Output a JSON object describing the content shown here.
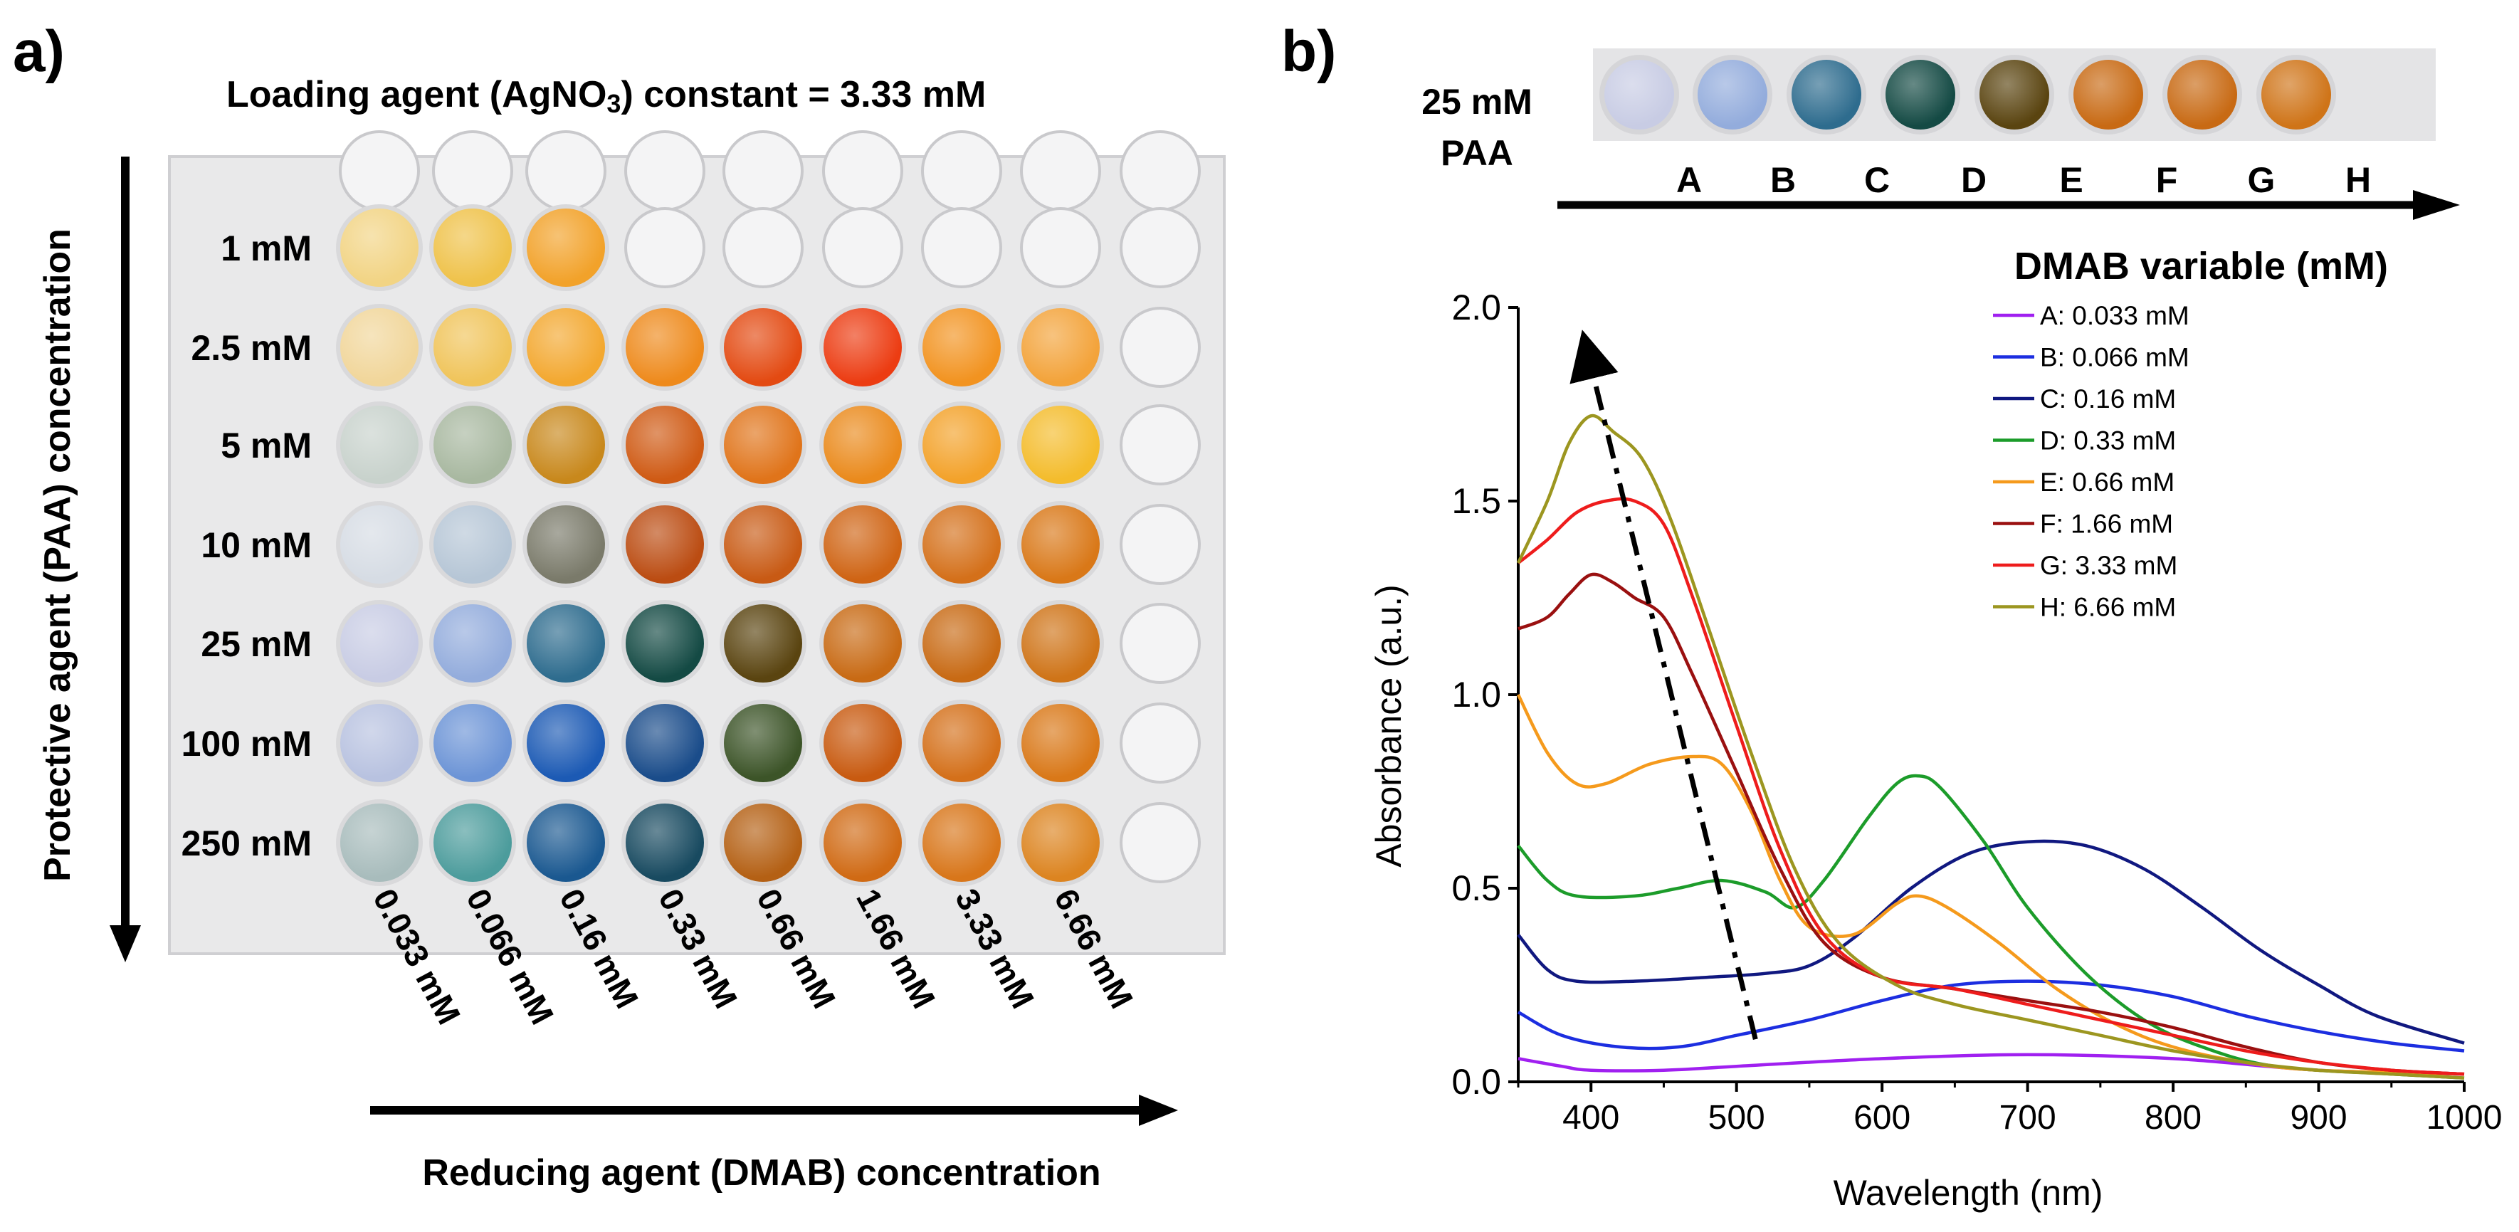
{
  "panel_a": {
    "label": "a)",
    "title": "Loading agent (AgNO3) constant = 3.33 mM",
    "title_main": "Loading agent (AgNO",
    "title_sub": "3",
    "title_tail": ") constant = 3.33 mM",
    "y_axis_label": "Protective agent (PAA) concentration",
    "x_axis_label": "Reducing agent (DMAB) concentration",
    "rows": [
      "1 mM",
      "2.5 mM",
      "5 mM",
      "10 mM",
      "25 mM",
      "100 mM",
      "250 mM"
    ],
    "columns": [
      "0.033 mM",
      "0.066 mM",
      "0.16 mM",
      "0.33 mM",
      "0.66 mM",
      "1.66 mM",
      "3.33 mM",
      "6.66 mM"
    ],
    "well_colors": [
      [
        "#f2d484",
        "#efc24a",
        "#f2a22a",
        null,
        null,
        null,
        null,
        null
      ],
      [
        "#f1d69a",
        "#f0c45a",
        "#f3a830",
        "#ee8a1c",
        "#e34a12",
        "#ec3c12",
        "#f29320",
        "#f3a33a"
      ],
      [
        "#c8d2cc",
        "#a8b8a0",
        "#c8881c",
        "#cf5a14",
        "#e0741a",
        "#ea8a1c",
        "#f3a22a",
        "#f4bc2c"
      ],
      [
        "#d6dce4",
        "#b6c6d6",
        "#7a7a6a",
        "#bb4c12",
        "#c85a14",
        "#cf6414",
        "#d4701a",
        "#d97818"
      ],
      [
        "#c8cce4",
        "#93acdc",
        "#2e6c8e",
        "#144a44",
        "#5a4410",
        "#c86a14",
        "#c86a14",
        "#cf7418"
      ],
      [
        "#b8c2e0",
        "#6c94d6",
        "#1c5ab4",
        "#1a4c8a",
        "#3c5428",
        "#c85a10",
        "#d4701a",
        "#d97818"
      ],
      [
        "#a8bcbc",
        "#4c9c9c",
        "#1a5890",
        "#184a60",
        "#b46014",
        "#d06a14",
        "#d8761a",
        "#dc8420"
      ]
    ]
  },
  "panel_b": {
    "label": "b)",
    "strip_label_line1": "25 mM",
    "strip_label_line2": "PAA",
    "strip_letters": [
      "A",
      "B",
      "C",
      "D",
      "E",
      "F",
      "G",
      "H"
    ],
    "strip_colors": [
      "#c8cce4",
      "#93acdc",
      "#2e6c8e",
      "#144a44",
      "#5a4410",
      "#c86a14",
      "#c86a14",
      "#cf7418"
    ],
    "legend_title": "DMAB variable (mM)"
  },
  "chart_data": {
    "type": "line",
    "xlabel": "Wavelength (nm)",
    "ylabel": "Absorbance (a.u.)",
    "xlim": [
      350,
      1000
    ],
    "ylim": [
      0,
      2.0
    ],
    "x_ticks": [
      400,
      500,
      600,
      700,
      800,
      900,
      1000
    ],
    "y_ticks": [
      "0.0",
      "0.5",
      "1.0",
      "1.5",
      "2.0"
    ],
    "legend_title": "DMAB variable (mM)",
    "series": [
      {
        "name": "A: 0.033 mM",
        "color": "#a020f0",
        "points": [
          [
            350,
            0.06
          ],
          [
            380,
            0.04
          ],
          [
            400,
            0.03
          ],
          [
            450,
            0.03
          ],
          [
            500,
            0.04
          ],
          [
            600,
            0.06
          ],
          [
            700,
            0.07
          ],
          [
            800,
            0.06
          ],
          [
            900,
            0.03
          ],
          [
            1000,
            0.02
          ]
        ]
      },
      {
        "name": "B: 0.066 mM",
        "color": "#1c2ee0",
        "points": [
          [
            350,
            0.18
          ],
          [
            380,
            0.12
          ],
          [
            420,
            0.09
          ],
          [
            460,
            0.09
          ],
          [
            500,
            0.12
          ],
          [
            550,
            0.16
          ],
          [
            600,
            0.21
          ],
          [
            650,
            0.25
          ],
          [
            700,
            0.26
          ],
          [
            750,
            0.25
          ],
          [
            800,
            0.22
          ],
          [
            850,
            0.17
          ],
          [
            900,
            0.13
          ],
          [
            950,
            0.1
          ],
          [
            1000,
            0.08
          ]
        ]
      },
      {
        "name": "C: 0.16 mM",
        "color": "#101880",
        "points": [
          [
            350,
            0.38
          ],
          [
            370,
            0.29
          ],
          [
            390,
            0.26
          ],
          [
            430,
            0.26
          ],
          [
            480,
            0.27
          ],
          [
            520,
            0.28
          ],
          [
            550,
            0.3
          ],
          [
            580,
            0.37
          ],
          [
            620,
            0.5
          ],
          [
            660,
            0.59
          ],
          [
            700,
            0.62
          ],
          [
            740,
            0.61
          ],
          [
            780,
            0.55
          ],
          [
            820,
            0.45
          ],
          [
            860,
            0.34
          ],
          [
            900,
            0.25
          ],
          [
            940,
            0.17
          ],
          [
            1000,
            0.1
          ]
        ]
      },
      {
        "name": "D: 0.33 mM",
        "color": "#1c9c2a",
        "points": [
          [
            350,
            0.61
          ],
          [
            370,
            0.52
          ],
          [
            390,
            0.48
          ],
          [
            430,
            0.48
          ],
          [
            460,
            0.5
          ],
          [
            490,
            0.52
          ],
          [
            520,
            0.49
          ],
          [
            540,
            0.45
          ],
          [
            560,
            0.52
          ],
          [
            590,
            0.68
          ],
          [
            610,
            0.77
          ],
          [
            625,
            0.79
          ],
          [
            640,
            0.76
          ],
          [
            670,
            0.62
          ],
          [
            700,
            0.45
          ],
          [
            740,
            0.28
          ],
          [
            780,
            0.16
          ],
          [
            820,
            0.09
          ],
          [
            870,
            0.04
          ],
          [
            950,
            0.02
          ],
          [
            1000,
            0.01
          ]
        ]
      },
      {
        "name": "E: 0.66 mM",
        "color": "#f59a1c",
        "points": [
          [
            350,
            1.0
          ],
          [
            370,
            0.85
          ],
          [
            390,
            0.77
          ],
          [
            410,
            0.77
          ],
          [
            440,
            0.82
          ],
          [
            470,
            0.84
          ],
          [
            490,
            0.82
          ],
          [
            510,
            0.7
          ],
          [
            530,
            0.52
          ],
          [
            550,
            0.4
          ],
          [
            580,
            0.38
          ],
          [
            610,
            0.46
          ],
          [
            625,
            0.48
          ],
          [
            645,
            0.45
          ],
          [
            680,
            0.36
          ],
          [
            720,
            0.24
          ],
          [
            760,
            0.15
          ],
          [
            800,
            0.09
          ],
          [
            850,
            0.05
          ],
          [
            900,
            0.03
          ],
          [
            1000,
            0.02
          ]
        ]
      },
      {
        "name": "F: 1.66 mM",
        "color": "#9a1010",
        "points": [
          [
            350,
            1.17
          ],
          [
            370,
            1.2
          ],
          [
            385,
            1.26
          ],
          [
            400,
            1.31
          ],
          [
            415,
            1.29
          ],
          [
            430,
            1.25
          ],
          [
            450,
            1.2
          ],
          [
            470,
            1.05
          ],
          [
            500,
            0.8
          ],
          [
            530,
            0.55
          ],
          [
            560,
            0.36
          ],
          [
            600,
            0.27
          ],
          [
            650,
            0.24
          ],
          [
            700,
            0.21
          ],
          [
            750,
            0.18
          ],
          [
            800,
            0.14
          ],
          [
            850,
            0.09
          ],
          [
            900,
            0.05
          ],
          [
            950,
            0.03
          ],
          [
            1000,
            0.02
          ]
        ]
      },
      {
        "name": "G: 3.33 mM",
        "color": "#ee1c1c",
        "points": [
          [
            350,
            1.34
          ],
          [
            370,
            1.4
          ],
          [
            390,
            1.47
          ],
          [
            410,
            1.5
          ],
          [
            430,
            1.5
          ],
          [
            450,
            1.44
          ],
          [
            470,
            1.25
          ],
          [
            500,
            0.92
          ],
          [
            530,
            0.6
          ],
          [
            560,
            0.38
          ],
          [
            600,
            0.27
          ],
          [
            650,
            0.24
          ],
          [
            700,
            0.2
          ],
          [
            750,
            0.16
          ],
          [
            800,
            0.12
          ],
          [
            850,
            0.08
          ],
          [
            900,
            0.05
          ],
          [
            950,
            0.03
          ],
          [
            1000,
            0.02
          ]
        ]
      },
      {
        "name": "H: 6.66 mM",
        "color": "#9c9620",
        "points": [
          [
            350,
            1.34
          ],
          [
            370,
            1.5
          ],
          [
            385,
            1.65
          ],
          [
            400,
            1.72
          ],
          [
            415,
            1.68
          ],
          [
            435,
            1.61
          ],
          [
            455,
            1.45
          ],
          [
            480,
            1.18
          ],
          [
            510,
            0.85
          ],
          [
            540,
            0.55
          ],
          [
            570,
            0.36
          ],
          [
            610,
            0.25
          ],
          [
            650,
            0.2
          ],
          [
            700,
            0.16
          ],
          [
            750,
            0.12
          ],
          [
            800,
            0.08
          ],
          [
            850,
            0.05
          ],
          [
            900,
            0.03
          ],
          [
            950,
            0.02
          ],
          [
            1000,
            0.01
          ]
        ]
      }
    ],
    "arrow": {
      "from": [
        513,
        0.11
      ],
      "to": [
        398,
        1.88
      ]
    }
  }
}
